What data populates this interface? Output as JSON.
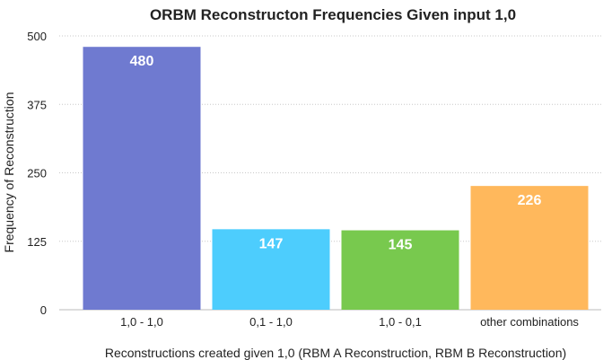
{
  "chart_data": {
    "type": "bar",
    "title": "ORBM Reconstructon Frequencies Given input 1,0",
    "xlabel": "Reconstructions created given 1,0 (RBM A Reconstruction, RBM B Reconstruction)",
    "ylabel": "Frequency of Reconstruction",
    "categories": [
      "1,0 - 1,0",
      "0,1 - 1,0",
      "1,0 - 0,1",
      "other combinations"
    ],
    "values": [
      480,
      147,
      145,
      226
    ],
    "value_labels": [
      "480",
      "147",
      "145",
      "226"
    ],
    "colors": [
      "#6f7ad0",
      "#4dcdfd",
      "#78c94e",
      "#ffb85c"
    ],
    "ylim": [
      0,
      500
    ],
    "yticks": [
      0,
      125,
      250,
      375,
      500
    ],
    "ytick_labels": [
      "0",
      "125",
      "250",
      "375",
      "500"
    ],
    "grid": true,
    "legend": "none"
  }
}
